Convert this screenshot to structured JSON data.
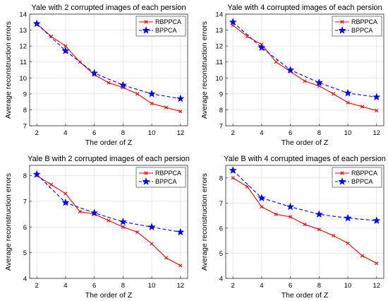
{
  "chart_data": [
    {
      "type": "line",
      "title": "Yale with 2 corrupted images of each persion",
      "xlabel": "The order of Z",
      "ylabel": "Average reconstruction errors",
      "xlim": [
        1.5,
        12.5
      ],
      "ylim": [
        7,
        14
      ],
      "xticks": [
        2,
        4,
        6,
        8,
        10,
        12
      ],
      "yticks": [
        7,
        8,
        9,
        10,
        11,
        12,
        13,
        14
      ],
      "legend_position": "top-right",
      "series": [
        {
          "name": "RBPPCA",
          "color": "#ff0000",
          "dash": "solid",
          "marker": "x",
          "x": [
            2,
            3,
            4,
            5,
            6,
            7,
            8,
            9,
            10,
            11,
            12
          ],
          "y": [
            13.4,
            12.6,
            12.0,
            11.0,
            10.2,
            9.7,
            9.4,
            9.0,
            8.4,
            8.15,
            7.9
          ]
        },
        {
          "name": "BPPCA",
          "color": "#0000ff",
          "dash": "dashed",
          "marker": "star",
          "x": [
            2,
            4,
            6,
            8,
            10,
            12
          ],
          "y": [
            13.4,
            11.7,
            10.3,
            9.55,
            9.0,
            8.7
          ]
        }
      ]
    },
    {
      "type": "line",
      "title": "Yale with 4 corrupted images of each persion",
      "xlabel": "The order of Z",
      "ylabel": "Average reconstruction errors",
      "xlim": [
        1.5,
        12.5
      ],
      "ylim": [
        7,
        14
      ],
      "xticks": [
        2,
        4,
        6,
        8,
        10,
        12
      ],
      "yticks": [
        7,
        8,
        9,
        10,
        11,
        12,
        13,
        14
      ],
      "legend_position": "top-right",
      "series": [
        {
          "name": "RBPPCA",
          "color": "#ff0000",
          "dash": "solid",
          "marker": "x",
          "x": [
            2,
            3,
            4,
            5,
            6,
            7,
            8,
            9,
            10,
            11,
            12
          ],
          "y": [
            13.3,
            12.6,
            12.1,
            11.0,
            10.4,
            9.8,
            9.5,
            9.0,
            8.45,
            8.2,
            7.95
          ]
        },
        {
          "name": "BPPCA",
          "color": "#0000ff",
          "dash": "dashed",
          "marker": "star",
          "x": [
            2,
            4,
            6,
            8,
            10,
            12
          ],
          "y": [
            13.5,
            11.9,
            10.5,
            9.7,
            9.05,
            8.8
          ]
        }
      ]
    },
    {
      "type": "line",
      "title": "Yale B with 2 corrupted images of each persion",
      "xlabel": "The order of Z",
      "ylabel": "Average reconstruction errors",
      "xlim": [
        1.5,
        12.5
      ],
      "ylim": [
        4,
        8.4
      ],
      "xticks": [
        2,
        4,
        6,
        8,
        10,
        12
      ],
      "yticks": [
        4,
        5,
        6,
        7,
        8
      ],
      "legend_position": "top-right",
      "series": [
        {
          "name": "RBPPCA",
          "color": "#ff0000",
          "dash": "solid",
          "marker": "x",
          "x": [
            2,
            3,
            4,
            5,
            6,
            7,
            8,
            9,
            10,
            11,
            12
          ],
          "y": [
            8.0,
            7.65,
            7.3,
            6.6,
            6.5,
            6.25,
            6.0,
            5.8,
            5.35,
            4.8,
            4.5
          ]
        },
        {
          "name": "BPPCA",
          "color": "#0000ff",
          "dash": "dashed",
          "marker": "star",
          "x": [
            2,
            4,
            6,
            8,
            10,
            12
          ],
          "y": [
            8.05,
            6.95,
            6.55,
            6.2,
            6.0,
            5.8
          ]
        }
      ]
    },
    {
      "type": "line",
      "title": "Yale B with 4 corrupted images of each persion",
      "xlabel": "The order of Z",
      "ylabel": "Average reconstruction errors",
      "xlim": [
        1.5,
        12.5
      ],
      "ylim": [
        4,
        8.5
      ],
      "xticks": [
        2,
        4,
        6,
        8,
        10,
        12
      ],
      "yticks": [
        4,
        5,
        6,
        7,
        8
      ],
      "legend_position": "top-right",
      "series": [
        {
          "name": "RBPPCA",
          "color": "#ff0000",
          "dash": "solid",
          "marker": "x",
          "x": [
            2,
            3,
            4,
            5,
            6,
            7,
            8,
            9,
            10,
            11,
            12
          ],
          "y": [
            8.0,
            7.65,
            6.85,
            6.55,
            6.45,
            6.15,
            5.95,
            5.7,
            5.4,
            4.9,
            4.6
          ]
        },
        {
          "name": "BPPCA",
          "color": "#0000ff",
          "dash": "dashed",
          "marker": "star",
          "x": [
            2,
            4,
            6,
            8,
            10,
            12
          ],
          "y": [
            8.3,
            7.2,
            6.85,
            6.55,
            6.4,
            6.3
          ]
        }
      ]
    }
  ]
}
